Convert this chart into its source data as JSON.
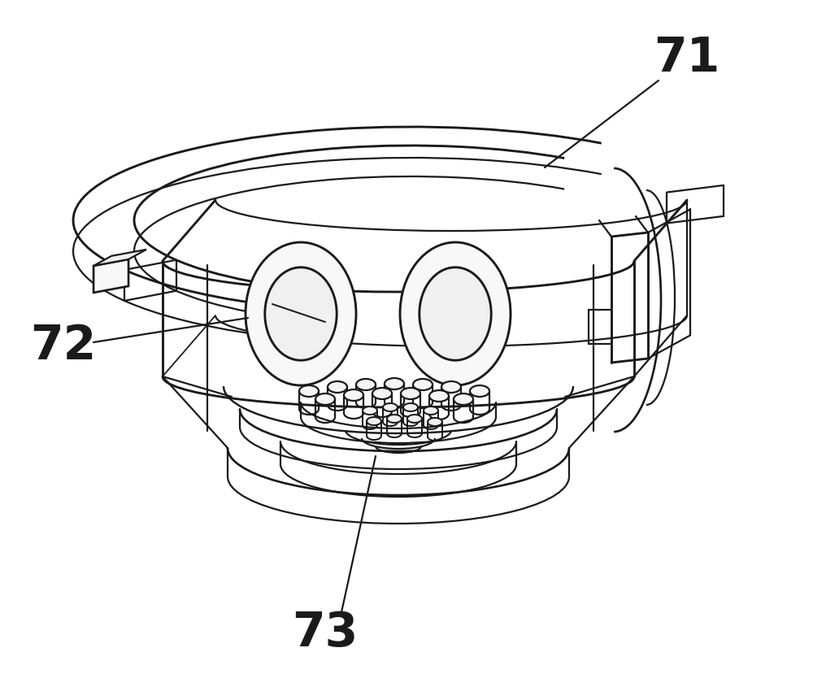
{
  "bg_color": "#ffffff",
  "line_color": "#1a1a1a",
  "line_width": 1.6,
  "label_71": "71",
  "label_72": "72",
  "label_73": "73",
  "font_size": 42
}
